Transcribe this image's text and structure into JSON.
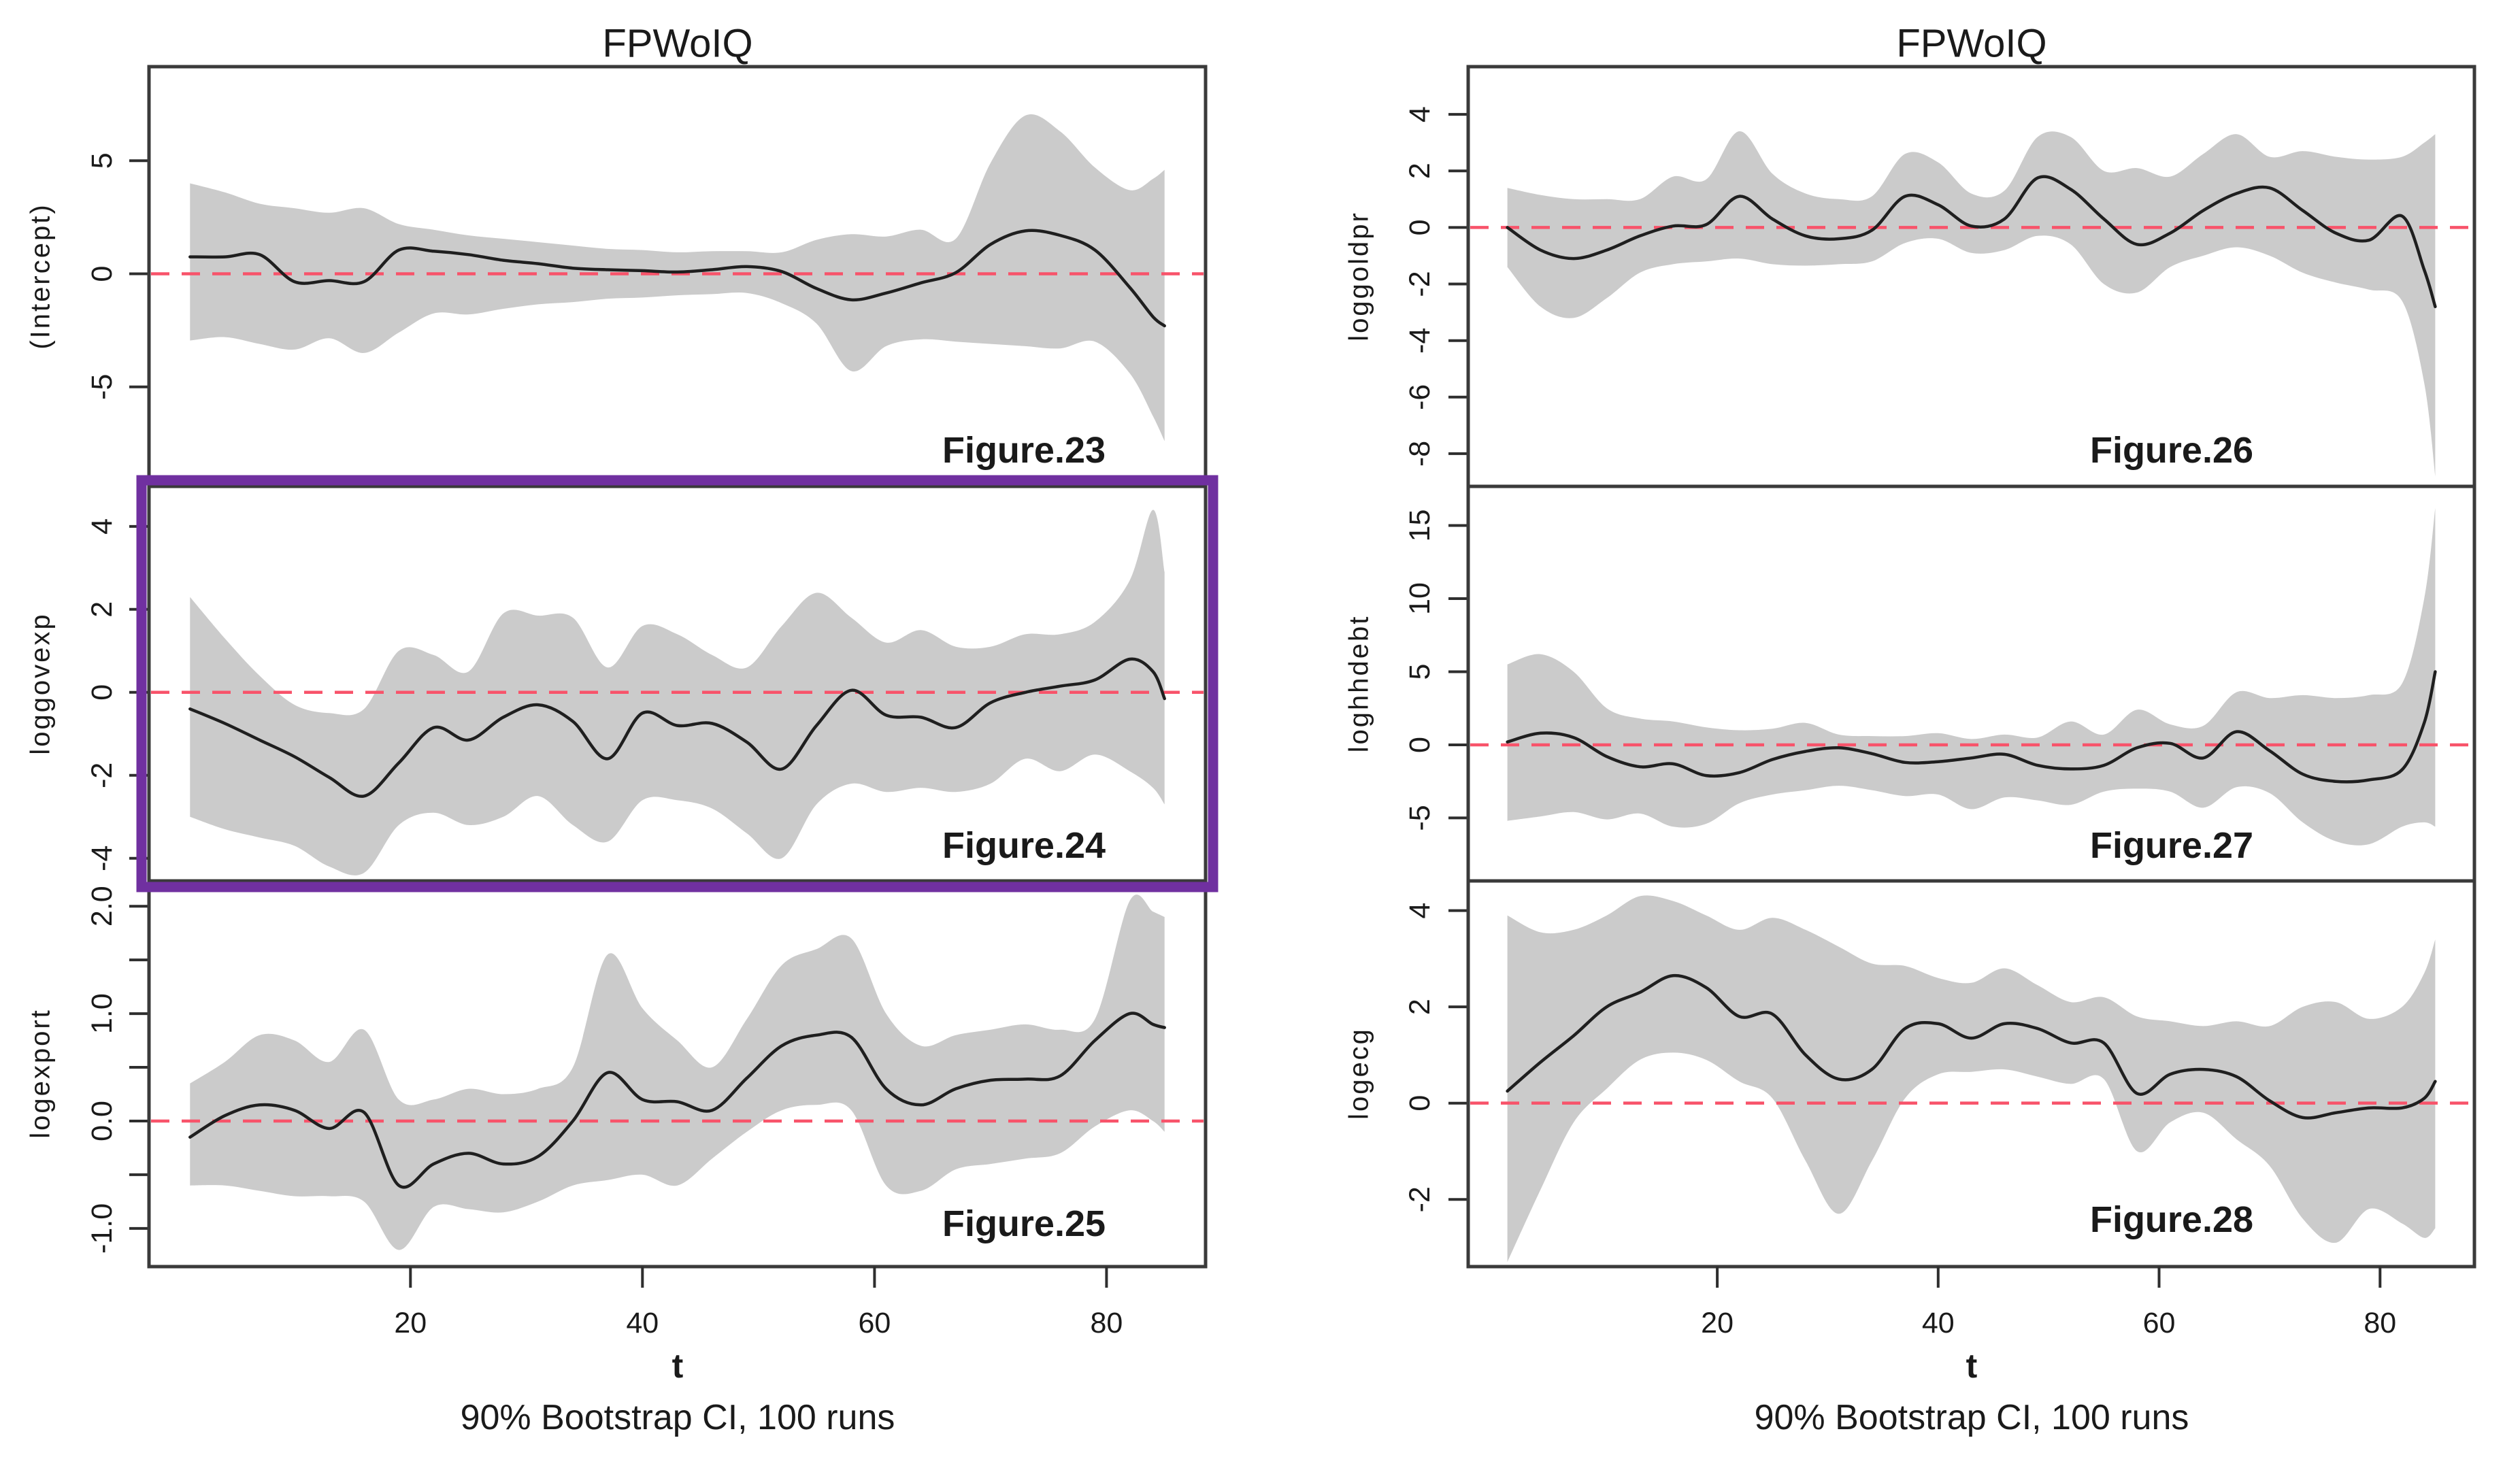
{
  "colors": {
    "background": "#ffffff",
    "band": "#cbcbcb",
    "mean_line": "#1f1f1f",
    "zero_line": "#f8536a",
    "panel_border": "#3a3a3a",
    "tick": "#2e2e2e",
    "text": "#1a1a1a",
    "highlight_border": "#7030a0"
  },
  "columns": [
    {
      "title": "FPWoIQ",
      "xlabel": "t",
      "caption": "90% Bootstrap CI, 100 runs",
      "xticks": [
        20,
        40,
        60,
        80
      ],
      "xtick_labels": [
        "20",
        "40",
        "60",
        "80"
      ]
    },
    {
      "title": "FPWoIQ",
      "xlabel": "t",
      "caption": "90% Bootstrap CI, 100 runs",
      "xticks": [
        20,
        40,
        60,
        80
      ],
      "xtick_labels": [
        "20",
        "40",
        "60",
        "80"
      ]
    }
  ],
  "chart_data": [
    {
      "type": "line",
      "column": 0,
      "row": 0,
      "highlighted": false,
      "ylabel": "(Intercept)",
      "figure_label": "Figure.23",
      "xlim": [
        -2.36,
        88.36
      ],
      "ylim": [
        -9.28,
        9.04
      ],
      "zero_line": 0,
      "yticks": [
        5,
        0,
        -5
      ],
      "ytick_labels": [
        "5",
        "0",
        "-5"
      ],
      "x": [
        1,
        4,
        7,
        10,
        13,
        16,
        19,
        22,
        25,
        28,
        31,
        34,
        37,
        40,
        43,
        46,
        49,
        52,
        55,
        58,
        61,
        64,
        67,
        70,
        73,
        76,
        79,
        82,
        84,
        85
      ],
      "series": [
        {
          "name": "mean",
          "values": [
            0.75,
            0.75,
            0.85,
            -0.35,
            -0.3,
            -0.35,
            1.05,
            1.0,
            0.85,
            0.6,
            0.45,
            0.25,
            0.18,
            0.14,
            0.08,
            0.18,
            0.32,
            0.1,
            -0.65,
            -1.15,
            -0.85,
            -0.4,
            0.05,
            1.3,
            1.9,
            1.7,
            1.05,
            -0.6,
            -1.9,
            -2.3
          ]
        },
        {
          "name": "ci_upper",
          "values": [
            4.0,
            3.6,
            3.1,
            2.9,
            2.7,
            2.9,
            2.2,
            1.95,
            1.7,
            1.55,
            1.4,
            1.25,
            1.1,
            1.05,
            0.95,
            1.0,
            1.0,
            0.95,
            1.5,
            1.75,
            1.65,
            1.95,
            1.55,
            4.9,
            7.0,
            6.3,
            4.7,
            3.7,
            4.2,
            4.6
          ]
        },
        {
          "name": "ci_lower",
          "values": [
            -2.95,
            -2.8,
            -3.1,
            -3.35,
            -2.85,
            -3.5,
            -2.6,
            -1.75,
            -1.8,
            -1.55,
            -1.35,
            -1.25,
            -1.1,
            -1.05,
            -0.95,
            -0.9,
            -0.85,
            -1.3,
            -2.2,
            -4.3,
            -3.2,
            -2.9,
            -3.0,
            -3.1,
            -3.2,
            -3.3,
            -3.0,
            -4.4,
            -6.3,
            -7.4
          ]
        }
      ]
    },
    {
      "type": "line",
      "column": 0,
      "row": 1,
      "highlighted": true,
      "ylabel": "loggovexp",
      "figure_label": "Figure.24",
      "xlim": [
        -2.36,
        88.36
      ],
      "ylim": [
        -4.48,
        4.9
      ],
      "zero_line": 0,
      "yticks": [
        4,
        2,
        0,
        -2,
        -4
      ],
      "ytick_labels": [
        "4",
        "2",
        "0",
        "-2",
        "-4"
      ],
      "x": [
        1,
        4,
        7,
        10,
        13,
        16,
        19,
        22,
        25,
        28,
        31,
        34,
        37,
        40,
        43,
        46,
        49,
        52,
        55,
        58,
        61,
        64,
        67,
        70,
        73,
        76,
        79,
        82,
        84,
        85
      ],
      "series": [
        {
          "name": "mean",
          "values": [
            -0.4,
            -0.75,
            -1.15,
            -1.55,
            -2.05,
            -2.5,
            -1.7,
            -0.85,
            -1.15,
            -0.6,
            -0.3,
            -0.7,
            -1.6,
            -0.5,
            -0.8,
            -0.75,
            -1.2,
            -1.85,
            -0.8,
            0.05,
            -0.55,
            -0.6,
            -0.85,
            -0.25,
            0.0,
            0.15,
            0.3,
            0.8,
            0.5,
            -0.15
          ]
        },
        {
          "name": "ci_upper",
          "values": [
            2.3,
            1.3,
            0.4,
            -0.3,
            -0.5,
            -0.4,
            1.0,
            0.9,
            0.5,
            1.9,
            1.85,
            1.8,
            0.6,
            1.6,
            1.4,
            0.9,
            0.6,
            1.6,
            2.4,
            1.8,
            1.2,
            1.5,
            1.1,
            1.1,
            1.4,
            1.4,
            1.7,
            2.7,
            4.4,
            2.9
          ]
        },
        {
          "name": "ci_lower",
          "values": [
            -3.0,
            -3.3,
            -3.5,
            -3.7,
            -4.2,
            -4.35,
            -3.2,
            -2.9,
            -3.2,
            -3.0,
            -2.5,
            -3.2,
            -3.6,
            -2.6,
            -2.6,
            -2.8,
            -3.4,
            -4.0,
            -2.7,
            -2.2,
            -2.4,
            -2.3,
            -2.4,
            -2.2,
            -1.6,
            -1.9,
            -1.5,
            -1.9,
            -2.3,
            -2.7
          ]
        }
      ]
    },
    {
      "type": "line",
      "column": 0,
      "row": 2,
      "highlighted": false,
      "ylabel": "logexport",
      "figure_label": "Figure.25",
      "xlim": [
        -2.36,
        88.36
      ],
      "ylim": [
        -1.33,
        2.21
      ],
      "zero_line": 0,
      "yticks": [
        2.0,
        1.5,
        1.0,
        0.5,
        0.0,
        -0.5,
        -1.0
      ],
      "ytick_labels": [
        "2.0",
        "",
        "1.0",
        "",
        "0.0",
        "",
        "-1.0"
      ],
      "x": [
        1,
        4,
        7,
        10,
        13,
        16,
        19,
        22,
        25,
        28,
        31,
        34,
        37,
        40,
        43,
        46,
        49,
        52,
        55,
        58,
        61,
        64,
        67,
        70,
        73,
        76,
        79,
        82,
        84,
        85
      ],
      "series": [
        {
          "name": "mean",
          "values": [
            -0.15,
            0.05,
            0.15,
            0.1,
            -0.07,
            0.08,
            -0.6,
            -0.4,
            -0.3,
            -0.4,
            -0.33,
            0.0,
            0.45,
            0.2,
            0.18,
            0.1,
            0.4,
            0.7,
            0.8,
            0.78,
            0.3,
            0.15,
            0.3,
            0.38,
            0.39,
            0.42,
            0.75,
            1.0,
            0.9,
            0.87
          ]
        },
        {
          "name": "ci_upper",
          "values": [
            0.35,
            0.55,
            0.8,
            0.75,
            0.55,
            0.85,
            0.2,
            0.2,
            0.3,
            0.25,
            0.3,
            0.5,
            1.55,
            1.05,
            0.75,
            0.5,
            0.95,
            1.45,
            1.6,
            1.7,
            1.0,
            0.7,
            0.8,
            0.85,
            0.9,
            0.85,
            0.95,
            2.05,
            1.95,
            1.9
          ]
        },
        {
          "name": "ci_lower",
          "values": [
            -0.6,
            -0.6,
            -0.65,
            -0.7,
            -0.7,
            -0.75,
            -1.2,
            -0.8,
            -0.82,
            -0.85,
            -0.75,
            -0.6,
            -0.55,
            -0.5,
            -0.6,
            -0.35,
            -0.1,
            0.1,
            0.15,
            0.1,
            -0.6,
            -0.65,
            -0.45,
            -0.4,
            -0.35,
            -0.3,
            -0.05,
            0.1,
            0.0,
            -0.1
          ]
        }
      ]
    },
    {
      "type": "line",
      "column": 1,
      "row": 0,
      "highlighted": false,
      "ylabel": "loggoldpr",
      "figure_label": "Figure.26",
      "xlim": [
        -2.36,
        88.36
      ],
      "ylim": [
        -9.06,
        5.59
      ],
      "zero_line": 0,
      "yticks": [
        4,
        2,
        0,
        -2,
        -4,
        -6,
        -8
      ],
      "ytick_labels": [
        "4",
        "2",
        "0",
        "-2",
        "-4",
        "-6",
        "-8"
      ],
      "x": [
        1,
        4,
        7,
        10,
        13,
        16,
        19,
        22,
        25,
        28,
        31,
        34,
        37,
        40,
        43,
        46,
        49,
        52,
        55,
        58,
        61,
        64,
        67,
        70,
        73,
        76,
        79,
        82,
        84,
        85
      ],
      "series": [
        {
          "name": "mean",
          "values": [
            0.0,
            -0.8,
            -1.1,
            -0.8,
            -0.3,
            0.05,
            0.1,
            1.1,
            0.3,
            -0.3,
            -0.4,
            -0.1,
            1.1,
            0.8,
            0.05,
            0.3,
            1.75,
            1.35,
            0.3,
            -0.6,
            -0.2,
            0.6,
            1.2,
            1.4,
            0.6,
            -0.2,
            -0.45,
            0.4,
            -1.5,
            -2.8
          ]
        },
        {
          "name": "ci_upper",
          "values": [
            1.4,
            1.15,
            1.0,
            1.0,
            1.0,
            1.8,
            1.7,
            3.4,
            1.9,
            1.2,
            1.0,
            1.1,
            2.6,
            2.3,
            1.2,
            1.3,
            3.2,
            3.2,
            2.0,
            2.1,
            1.8,
            2.6,
            3.3,
            2.5,
            2.7,
            2.5,
            2.4,
            2.5,
            3.0,
            3.3
          ]
        },
        {
          "name": "ci_lower",
          "values": [
            -1.4,
            -2.8,
            -3.2,
            -2.5,
            -1.6,
            -1.3,
            -1.2,
            -1.1,
            -1.3,
            -1.35,
            -1.3,
            -1.2,
            -0.55,
            -0.4,
            -0.9,
            -0.8,
            -0.3,
            -0.6,
            -2.0,
            -2.3,
            -1.4,
            -1.0,
            -0.7,
            -1.0,
            -1.6,
            -1.95,
            -2.2,
            -2.6,
            -5.5,
            -8.8
          ]
        }
      ]
    },
    {
      "type": "line",
      "column": 1,
      "row": 1,
      "highlighted": false,
      "ylabel": "loghhdebt",
      "figure_label": "Figure.27",
      "xlim": [
        -2.36,
        88.36
      ],
      "ylim": [
        -9.12,
        17.49
      ],
      "zero_line": 0,
      "yticks": [
        15,
        10,
        5,
        0,
        -5
      ],
      "ytick_labels": [
        "15",
        "10",
        "5",
        "0",
        "-5"
      ],
      "x": [
        1,
        4,
        7,
        10,
        13,
        16,
        19,
        22,
        25,
        28,
        31,
        34,
        37,
        40,
        43,
        46,
        49,
        52,
        55,
        58,
        61,
        64,
        67,
        70,
        73,
        76,
        79,
        82,
        84,
        85
      ],
      "series": [
        {
          "name": "mean",
          "values": [
            0.2,
            0.8,
            0.5,
            -0.8,
            -1.5,
            -1.3,
            -2.1,
            -1.9,
            -1.0,
            -0.45,
            -0.2,
            -0.6,
            -1.2,
            -1.15,
            -0.9,
            -0.65,
            -1.4,
            -1.65,
            -1.4,
            -0.2,
            0.1,
            -0.9,
            0.9,
            -0.4,
            -2.0,
            -2.5,
            -2.4,
            -1.7,
            1.5,
            5.0
          ]
        },
        {
          "name": "ci_upper",
          "values": [
            5.5,
            6.2,
            5.0,
            2.5,
            1.8,
            1.6,
            1.2,
            1.0,
            1.1,
            1.5,
            0.7,
            0.6,
            0.6,
            0.8,
            0.4,
            0.7,
            0.5,
            1.6,
            0.7,
            2.4,
            1.4,
            1.3,
            3.6,
            3.2,
            3.4,
            3.2,
            3.4,
            4.2,
            10.0,
            16.2
          ]
        },
        {
          "name": "ci_lower",
          "values": [
            -5.2,
            -4.9,
            -4.6,
            -5.1,
            -4.7,
            -5.6,
            -5.4,
            -4.0,
            -3.4,
            -3.1,
            -2.8,
            -3.1,
            -3.5,
            -3.4,
            -4.4,
            -3.6,
            -3.8,
            -4.1,
            -3.2,
            -3.0,
            -3.2,
            -4.3,
            -2.9,
            -3.3,
            -5.3,
            -6.6,
            -6.8,
            -5.6,
            -5.3,
            -5.6
          ]
        }
      ]
    },
    {
      "type": "line",
      "column": 1,
      "row": 2,
      "highlighted": false,
      "ylabel": "logecg",
      "figure_label": "Figure.28",
      "xlim": [
        -2.36,
        88.36
      ],
      "ylim": [
        -3.34,
        4.56
      ],
      "zero_line": 0,
      "yticks": [
        4,
        2,
        0,
        -2
      ],
      "ytick_labels": [
        "4",
        "2",
        "0",
        "-2"
      ],
      "x": [
        1,
        4,
        7,
        10,
        13,
        16,
        19,
        22,
        25,
        28,
        31,
        34,
        37,
        40,
        43,
        46,
        49,
        52,
        55,
        58,
        61,
        64,
        67,
        70,
        73,
        76,
        79,
        82,
        84,
        85
      ],
      "series": [
        {
          "name": "mean",
          "values": [
            0.25,
            0.85,
            1.4,
            2.0,
            2.3,
            2.65,
            2.4,
            1.8,
            1.85,
            1.0,
            0.5,
            0.7,
            1.55,
            1.65,
            1.35,
            1.65,
            1.55,
            1.25,
            1.25,
            0.2,
            0.6,
            0.7,
            0.55,
            0.05,
            -0.3,
            -0.2,
            -0.1,
            -0.1,
            0.1,
            0.45
          ]
        },
        {
          "name": "ci_upper",
          "values": [
            3.9,
            3.55,
            3.6,
            3.9,
            4.3,
            4.2,
            3.9,
            3.6,
            3.85,
            3.6,
            3.25,
            2.9,
            2.85,
            2.6,
            2.5,
            2.8,
            2.45,
            2.1,
            2.2,
            1.8,
            1.7,
            1.6,
            1.7,
            1.6,
            2.0,
            2.1,
            1.75,
            2.0,
            2.7,
            3.4
          ]
        },
        {
          "name": "ci_lower",
          "values": [
            -3.3,
            -1.8,
            -0.4,
            0.3,
            0.9,
            1.05,
            0.9,
            0.45,
            0.1,
            -1.2,
            -2.3,
            -1.2,
            0.1,
            0.6,
            0.65,
            0.7,
            0.55,
            0.4,
            0.5,
            -1.0,
            -0.4,
            -0.2,
            -0.75,
            -1.3,
            -2.4,
            -2.9,
            -2.2,
            -2.5,
            -2.8,
            -2.6
          ]
        }
      ]
    }
  ]
}
